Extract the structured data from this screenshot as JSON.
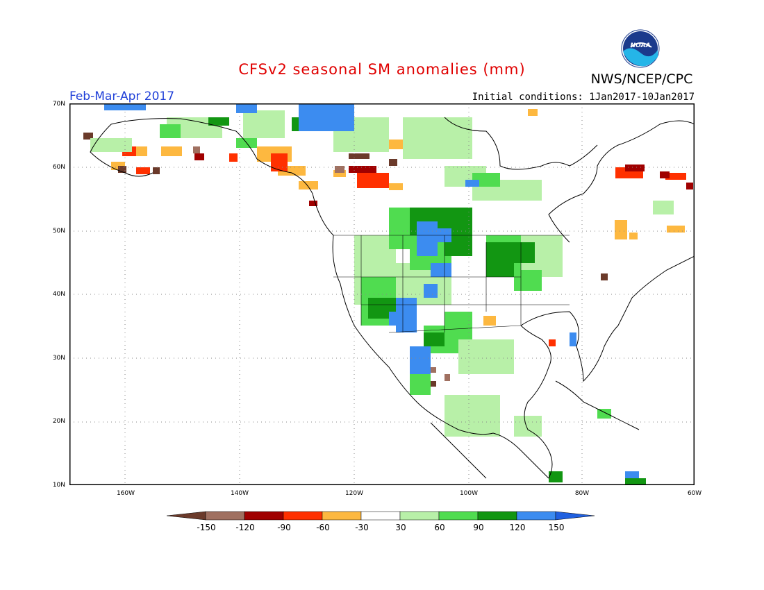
{
  "header": {
    "title": "CFSv2 seasonal SM anomalies (mm)",
    "org": "NWS/NCEP/CPC",
    "season": "Feb-Mar-Apr 2017",
    "initial_conditions": "Initial conditions: 1Jan2017-10Jan2017",
    "logo_text": "NOAA"
  },
  "map": {
    "lat_labels": [
      "70N",
      "60N",
      "50N",
      "40N",
      "30N",
      "20N",
      "10N"
    ],
    "lon_labels": [
      "160W",
      "140W",
      "120W",
      "100W",
      "80W",
      "60W"
    ],
    "colors": {
      "land_outline": "#000000",
      "grid_dots": "#888888"
    }
  },
  "colorbar": {
    "labels": [
      "-150",
      "-120",
      "-90",
      "-60",
      "-30",
      "30",
      "60",
      "90",
      "120",
      "150"
    ],
    "colors": [
      "#6b3a2a",
      "#a07060",
      "#a00000",
      "#ff3000",
      "#fdb840",
      "#ffffff",
      "#b8f0a8",
      "#50dc50",
      "#129612",
      "#3c8cf0",
      "#2060e0"
    ]
  }
}
